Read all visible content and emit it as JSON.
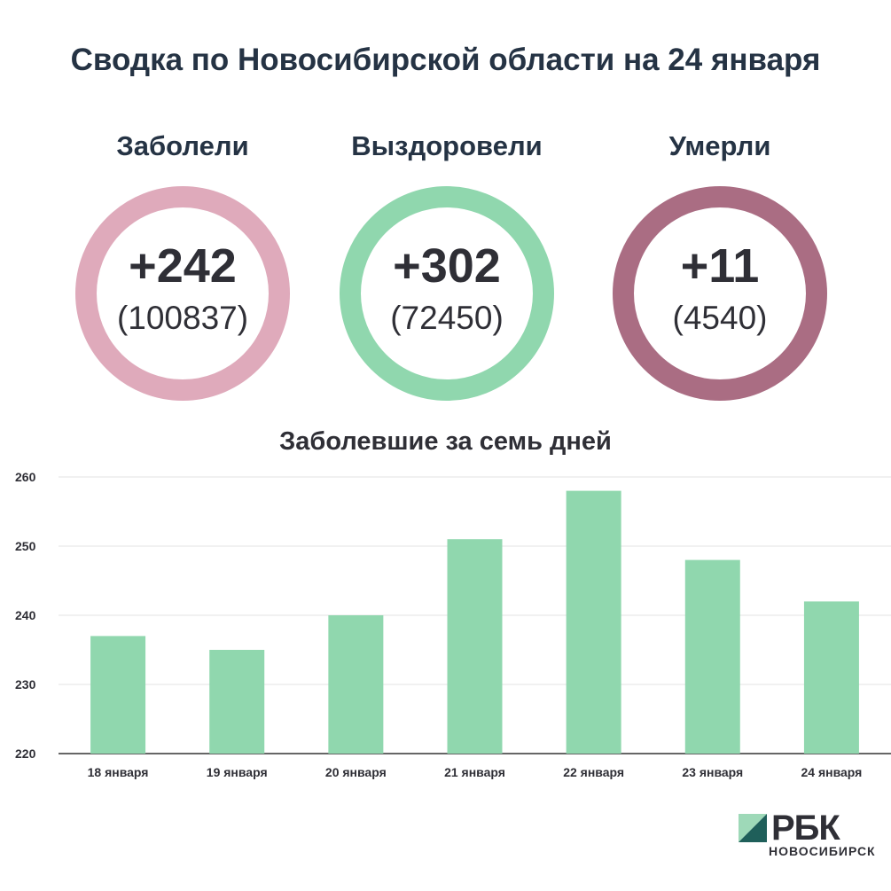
{
  "title": "Сводка по Новосибирской области на 24 января",
  "stats": [
    {
      "label": "Заболели",
      "value": "+242",
      "total": "(100837)",
      "color": "#dfaabb"
    },
    {
      "label": "Выздоровели",
      "value": "+302",
      "total": "(72450)",
      "color": "#90d7ae"
    },
    {
      "label": "Умерли",
      "value": "+11",
      "total": "(4540)",
      "color": "#aa6d83"
    }
  ],
  "chart_data": {
    "type": "bar",
    "title": "Заболевшие за семь дней",
    "categories": [
      "18 января",
      "19 января",
      "20 января",
      "21 января",
      "22 января",
      "23 января",
      "24 января"
    ],
    "values": [
      237,
      235,
      240,
      251,
      258,
      248,
      242
    ],
    "ylim": [
      220,
      260
    ],
    "yticks": [
      220,
      230,
      240,
      250,
      260
    ],
    "grid": true,
    "bar_color": "#90d7ae"
  },
  "logo": {
    "name": "РБК",
    "subtitle": "НОВОСИБИРСК"
  }
}
